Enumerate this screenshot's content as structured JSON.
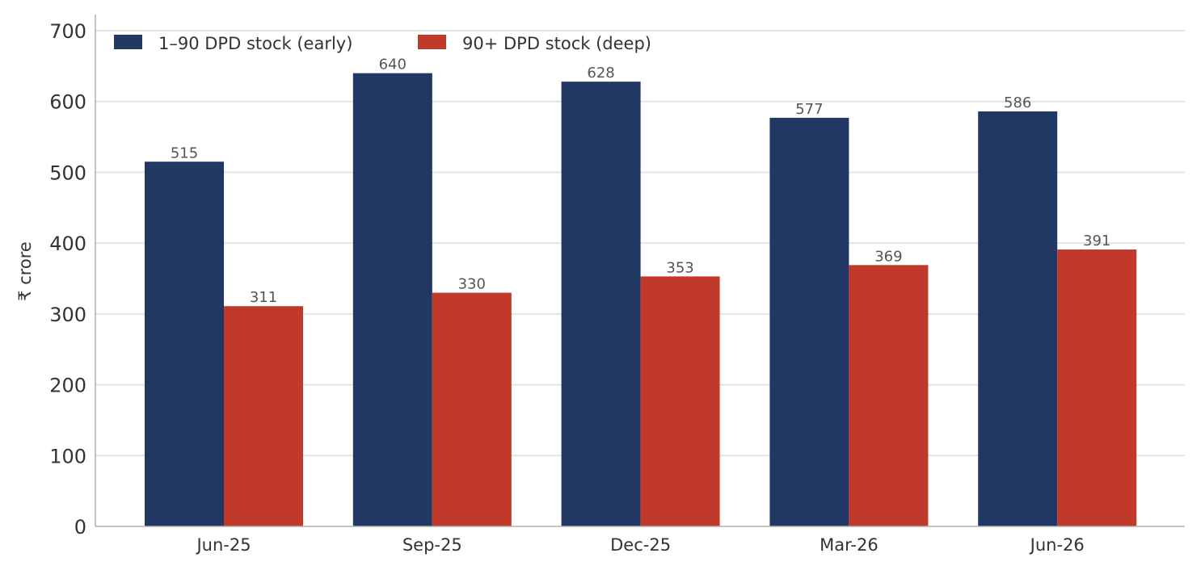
{
  "chart_data": {
    "type": "bar",
    "categories": [
      "Jun-25",
      "Sep-25",
      "Dec-25",
      "Mar-26",
      "Jun-26"
    ],
    "series": [
      {
        "name": "1–90 DPD stock (early)",
        "values": [
          515,
          640,
          628,
          577,
          586
        ],
        "color": "#213864"
      },
      {
        "name": "90+ DPD stock (deep)",
        "values": [
          311,
          330,
          353,
          369,
          391
        ],
        "color": "#c0392b"
      }
    ],
    "title": "",
    "xlabel": "",
    "ylabel": "₹ crore",
    "ylim": [
      0,
      700
    ],
    "yticks": [
      0,
      100,
      200,
      300,
      400,
      500,
      600,
      700
    ],
    "grid": "horizontal",
    "legend_position": "top-left"
  }
}
